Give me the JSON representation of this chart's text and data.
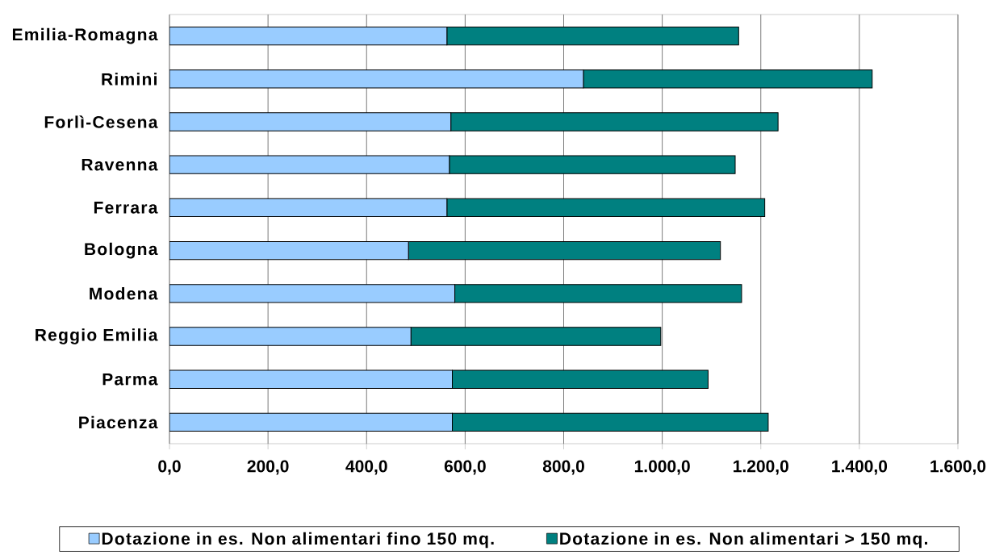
{
  "chart_data": {
    "type": "bar",
    "orientation": "horizontal",
    "stacked": true,
    "categories": [
      "Emilia-Romagna",
      "Rimini",
      "Forlì-Cesena",
      "Ravenna",
      "Ferrara",
      "Bologna",
      "Modena",
      "Reggio Emilia",
      "Parma",
      "Piacenza"
    ],
    "series": [
      {
        "name": "Dotazione in es. Non alimentari fino 150 mq.",
        "color": "#99ccff",
        "values": [
          563,
          840,
          571,
          568,
          563,
          485,
          579,
          490,
          574,
          574
        ]
      },
      {
        "name": "Dotazione in es. Non alimentari > 150 mq.",
        "color": "#008080",
        "values": [
          592,
          586,
          664,
          580,
          645,
          633,
          582,
          507,
          519,
          641
        ]
      }
    ],
    "xlim": [
      0,
      1600
    ],
    "xticks": [
      {
        "value": 0,
        "label": "0,0"
      },
      {
        "value": 200,
        "label": "200,0"
      },
      {
        "value": 400,
        "label": "400,0"
      },
      {
        "value": 600,
        "label": "600,0"
      },
      {
        "value": 800,
        "label": "800,0"
      },
      {
        "value": 1000,
        "label": "1.000,0"
      },
      {
        "value": 1200,
        "label": "1.200,0"
      },
      {
        "value": 1400,
        "label": "1.400,0"
      },
      {
        "value": 1600,
        "label": "1.600,0"
      }
    ],
    "grid": "x",
    "legend": "bottom"
  }
}
